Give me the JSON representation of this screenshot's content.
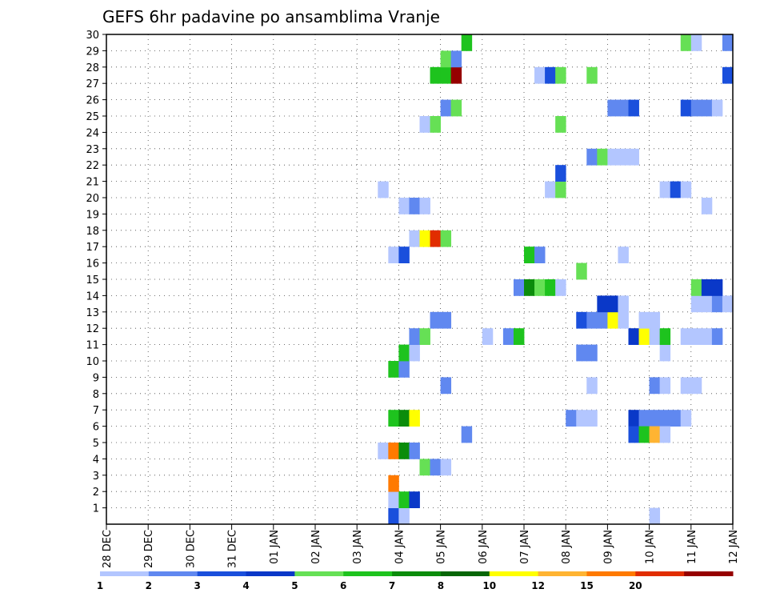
{
  "chart_data": {
    "type": "heatmap",
    "title": "GEFS 6hr padavine po ansamblima Vranje",
    "xlabel": "",
    "ylabel": "",
    "x_ticks": [
      "28 DEC",
      "29 DEC",
      "30 DEC",
      "31 DEC",
      "01 JAN",
      "02 JAN",
      "03 JAN",
      "04 JAN",
      "05 JAN",
      "06 JAN",
      "07 JAN",
      "08 JAN",
      "09 JAN",
      "10 JAN",
      "11 JAN",
      "12 JAN"
    ],
    "y_ticks": [
      "1",
      "2",
      "3",
      "4",
      "5",
      "6",
      "7",
      "8",
      "9",
      "10",
      "11",
      "12",
      "13",
      "14",
      "15",
      "16",
      "17",
      "18",
      "19",
      "20",
      "21",
      "22",
      "23",
      "24",
      "25",
      "26",
      "27",
      "28",
      "29",
      "30"
    ],
    "xlim": [
      0,
      60
    ],
    "ylim": [
      0,
      30
    ],
    "x_unit": "6-hour steps from 28 DEC 00z",
    "y_unit": "ensemble member",
    "grid": true,
    "colorbar": {
      "thresholds": [
        "1",
        "2",
        "3",
        "4",
        "5",
        "6",
        "7",
        "8",
        "10",
        "12",
        "15",
        "20"
      ],
      "colors": [
        "#b3c6ff",
        "#6088f0",
        "#1a4fdc",
        "#0a38c8",
        "#66e055",
        "#1ec31e",
        "#0b8c0b",
        "#066606",
        "#ffff00",
        "#ffb432",
        "#ff7a00",
        "#e12d00",
        "#960000"
      ]
    },
    "cells": [
      {
        "t": 27,
        "m": 0,
        "c": 2
      },
      {
        "t": 28,
        "m": 0,
        "c": 0
      },
      {
        "t": 52,
        "m": 0,
        "c": 0
      },
      {
        "t": 27,
        "m": 1,
        "c": 0
      },
      {
        "t": 28,
        "m": 1,
        "c": 5
      },
      {
        "t": 29,
        "m": 1,
        "c": 3
      },
      {
        "t": 27,
        "m": 2,
        "c": 10
      },
      {
        "t": 30,
        "m": 3,
        "c": 4
      },
      {
        "t": 31,
        "m": 3,
        "c": 1
      },
      {
        "t": 32,
        "m": 3,
        "c": 0
      },
      {
        "t": 26,
        "m": 4,
        "c": 0
      },
      {
        "t": 27,
        "m": 4,
        "c": 10
      },
      {
        "t": 28,
        "m": 4,
        "c": 6
      },
      {
        "t": 29,
        "m": 4,
        "c": 1
      },
      {
        "t": 34,
        "m": 5,
        "c": 1
      },
      {
        "t": 27,
        "m": 6,
        "c": 5
      },
      {
        "t": 28,
        "m": 6,
        "c": 6
      },
      {
        "t": 29,
        "m": 6,
        "c": 8
      },
      {
        "t": 46,
        "m": 6,
        "c": 0
      },
      {
        "t": 44,
        "m": 6,
        "c": 1
      },
      {
        "t": 45,
        "m": 6,
        "c": 0
      },
      {
        "t": 50,
        "m": 6,
        "c": 3
      },
      {
        "t": 51,
        "m": 6,
        "c": 1
      },
      {
        "t": 52,
        "m": 6,
        "c": 1
      },
      {
        "t": 53,
        "m": 6,
        "c": 1
      },
      {
        "t": 54,
        "m": 6,
        "c": 1
      },
      {
        "t": 55,
        "m": 6,
        "c": 0
      },
      {
        "t": 50,
        "m": 5,
        "c": 2
      },
      {
        "t": 51,
        "m": 5,
        "c": 5
      },
      {
        "t": 52,
        "m": 5,
        "c": 9
      },
      {
        "t": 53,
        "m": 5,
        "c": 0
      },
      {
        "t": 32,
        "m": 8,
        "c": 1
      },
      {
        "t": 46,
        "m": 8,
        "c": 0
      },
      {
        "t": 52,
        "m": 8,
        "c": 1
      },
      {
        "t": 53,
        "m": 8,
        "c": 0
      },
      {
        "t": 55,
        "m": 8,
        "c": 0
      },
      {
        "t": 56,
        "m": 8,
        "c": 0
      },
      {
        "t": 27,
        "m": 9,
        "c": 5
      },
      {
        "t": 28,
        "m": 9,
        "c": 1
      },
      {
        "t": 28,
        "m": 10,
        "c": 5
      },
      {
        "t": 29,
        "m": 10,
        "c": 0
      },
      {
        "t": 45,
        "m": 10,
        "c": 1
      },
      {
        "t": 46,
        "m": 10,
        "c": 1
      },
      {
        "t": 53,
        "m": 10,
        "c": 0
      },
      {
        "t": 29,
        "m": 11,
        "c": 1
      },
      {
        "t": 30,
        "m": 11,
        "c": 4
      },
      {
        "t": 36,
        "m": 11,
        "c": 0
      },
      {
        "t": 38,
        "m": 11,
        "c": 1
      },
      {
        "t": 39,
        "m": 11,
        "c": 5
      },
      {
        "t": 50,
        "m": 11,
        "c": 3
      },
      {
        "t": 51,
        "m": 11,
        "c": 8
      },
      {
        "t": 52,
        "m": 11,
        "c": 0
      },
      {
        "t": 53,
        "m": 11,
        "c": 5
      },
      {
        "t": 55,
        "m": 11,
        "c": 0
      },
      {
        "t": 56,
        "m": 11,
        "c": 0
      },
      {
        "t": 57,
        "m": 11,
        "c": 0
      },
      {
        "t": 58,
        "m": 11,
        "c": 1
      },
      {
        "t": 31,
        "m": 12,
        "c": 1
      },
      {
        "t": 32,
        "m": 12,
        "c": 1
      },
      {
        "t": 45,
        "m": 12,
        "c": 2
      },
      {
        "t": 46,
        "m": 12,
        "c": 1
      },
      {
        "t": 47,
        "m": 12,
        "c": 1
      },
      {
        "t": 48,
        "m": 12,
        "c": 8
      },
      {
        "t": 49,
        "m": 12,
        "c": 0
      },
      {
        "t": 51,
        "m": 12,
        "c": 0
      },
      {
        "t": 52,
        "m": 12,
        "c": 0
      },
      {
        "t": 47,
        "m": 13,
        "c": 3
      },
      {
        "t": 48,
        "m": 13,
        "c": 3
      },
      {
        "t": 49,
        "m": 13,
        "c": 0
      },
      {
        "t": 56,
        "m": 13,
        "c": 0
      },
      {
        "t": 57,
        "m": 13,
        "c": 0
      },
      {
        "t": 58,
        "m": 13,
        "c": 1
      },
      {
        "t": 59,
        "m": 13,
        "c": 0
      },
      {
        "t": 39,
        "m": 14,
        "c": 1
      },
      {
        "t": 40,
        "m": 14,
        "c": 6
      },
      {
        "t": 41,
        "m": 14,
        "c": 4
      },
      {
        "t": 42,
        "m": 14,
        "c": 5
      },
      {
        "t": 43,
        "m": 14,
        "c": 0
      },
      {
        "t": 56,
        "m": 14,
        "c": 4
      },
      {
        "t": 57,
        "m": 14,
        "c": 3
      },
      {
        "t": 58,
        "m": 14,
        "c": 3
      },
      {
        "t": 45,
        "m": 15,
        "c": 4
      },
      {
        "t": 27,
        "m": 16,
        "c": 0
      },
      {
        "t": 28,
        "m": 16,
        "c": 2
      },
      {
        "t": 40,
        "m": 16,
        "c": 5
      },
      {
        "t": 41,
        "m": 16,
        "c": 1
      },
      {
        "t": 49,
        "m": 16,
        "c": 0
      },
      {
        "t": 29,
        "m": 17,
        "c": 0
      },
      {
        "t": 30,
        "m": 17,
        "c": 8
      },
      {
        "t": 31,
        "m": 17,
        "c": 11
      },
      {
        "t": 32,
        "m": 17,
        "c": 4
      },
      {
        "t": 28,
        "m": 19,
        "c": 0
      },
      {
        "t": 29,
        "m": 19,
        "c": 1
      },
      {
        "t": 30,
        "m": 19,
        "c": 0
      },
      {
        "t": 57,
        "m": 19,
        "c": 0
      },
      {
        "t": 26,
        "m": 20,
        "c": 0
      },
      {
        "t": 42,
        "m": 20,
        "c": 0
      },
      {
        "t": 43,
        "m": 20,
        "c": 4
      },
      {
        "t": 53,
        "m": 20,
        "c": 0
      },
      {
        "t": 54,
        "m": 20,
        "c": 2
      },
      {
        "t": 55,
        "m": 20,
        "c": 0
      },
      {
        "t": 43,
        "m": 21,
        "c": 2
      },
      {
        "t": 46,
        "m": 22,
        "c": 1
      },
      {
        "t": 47,
        "m": 22,
        "c": 4
      },
      {
        "t": 48,
        "m": 22,
        "c": 0
      },
      {
        "t": 49,
        "m": 22,
        "c": 0
      },
      {
        "t": 50,
        "m": 22,
        "c": 0
      },
      {
        "t": 43,
        "m": 24,
        "c": 4
      },
      {
        "t": 30,
        "m": 24,
        "c": 0
      },
      {
        "t": 31,
        "m": 24,
        "c": 4
      },
      {
        "t": 32,
        "m": 25,
        "c": 1
      },
      {
        "t": 33,
        "m": 25,
        "c": 4
      },
      {
        "t": 48,
        "m": 25,
        "c": 1
      },
      {
        "t": 49,
        "m": 25,
        "c": 1
      },
      {
        "t": 50,
        "m": 25,
        "c": 2
      },
      {
        "t": 55,
        "m": 25,
        "c": 2
      },
      {
        "t": 56,
        "m": 25,
        "c": 1
      },
      {
        "t": 57,
        "m": 25,
        "c": 1
      },
      {
        "t": 58,
        "m": 25,
        "c": 0
      },
      {
        "t": 31,
        "m": 27,
        "c": 5
      },
      {
        "t": 32,
        "m": 27,
        "c": 5
      },
      {
        "t": 33,
        "m": 27,
        "c": 12
      },
      {
        "t": 41,
        "m": 27,
        "c": 0
      },
      {
        "t": 42,
        "m": 27,
        "c": 2
      },
      {
        "t": 43,
        "m": 27,
        "c": 4
      },
      {
        "t": 46,
        "m": 27,
        "c": 4
      },
      {
        "t": 59,
        "m": 27,
        "c": 2
      },
      {
        "t": 32,
        "m": 28,
        "c": 4
      },
      {
        "t": 33,
        "m": 28,
        "c": 1
      },
      {
        "t": 34,
        "m": 29,
        "c": 5
      },
      {
        "t": 55,
        "m": 29,
        "c": 4
      },
      {
        "t": 56,
        "m": 29,
        "c": 0
      },
      {
        "t": 59,
        "m": 29,
        "c": 1
      }
    ]
  }
}
